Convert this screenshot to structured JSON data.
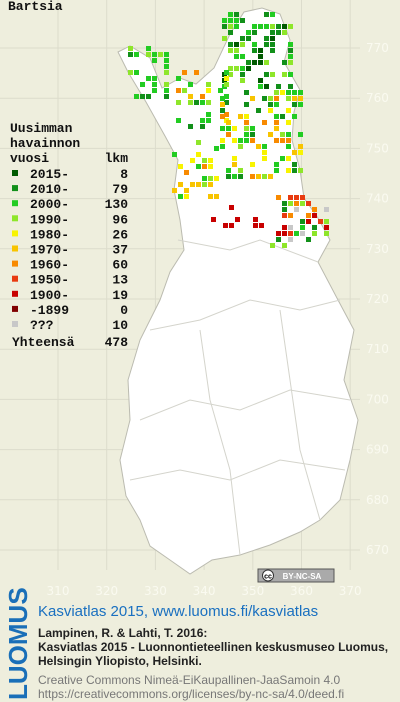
{
  "title": "Bartsia",
  "legend": {
    "heading": [
      "Uusimman",
      "havainnon",
      "vuosi"
    ],
    "count_heading": "lkm",
    "rows": [
      {
        "label": "2015-",
        "count": 8,
        "color": "#005a00"
      },
      {
        "label": "2010-",
        "count": 79,
        "color": "#12901a"
      },
      {
        "label": "2000-",
        "count": 130,
        "color": "#22cc22"
      },
      {
        "label": "1990-",
        "count": 96,
        "color": "#8ee62a"
      },
      {
        "label": "1980-",
        "count": 26,
        "color": "#f8f400"
      },
      {
        "label": "1970-",
        "count": 37,
        "color": "#f8c400"
      },
      {
        "label": "1960-",
        "count": 60,
        "color": "#f88a00"
      },
      {
        "label": "1950-",
        "count": 13,
        "color": "#e83a10"
      },
      {
        "label": "1900-",
        "count": 19,
        "color": "#c80000"
      },
      {
        "label": "-1899",
        "count": 0,
        "color": "#800000"
      },
      {
        "label": "???",
        "count": 10,
        "color": "#c8c8c8"
      }
    ],
    "total": {
      "label": "Yhteensä",
      "count": 478
    }
  },
  "axes": {
    "x_ticks": [
      310,
      320,
      330,
      340,
      350,
      360,
      370
    ],
    "y_ticks": [
      770,
      760,
      750,
      740,
      730,
      720,
      710,
      700,
      690,
      680,
      670
    ]
  },
  "license_badge": {
    "icon": "cc",
    "text": "BY-NC-SA"
  },
  "footer": {
    "logo": "LUOMUS",
    "headline": "Kasviatlas 2015, www.luomus.fi/kasviatlas",
    "citation": [
      "Lampinen, R. & Lahti, T. 2016:",
      "Kasviatlas 2015 - Luonnontieteellinen keskusmuseo Luomus,",
      "Helsingin Yliopisto, Helsinki."
    ],
    "license": [
      "Creative Commons Nimeä-EiKaupallinen-JaaSamoin 4.0",
      "https://creativecommons.org/licenses/by-nc-sa/4.0/deed.fi"
    ]
  }
}
